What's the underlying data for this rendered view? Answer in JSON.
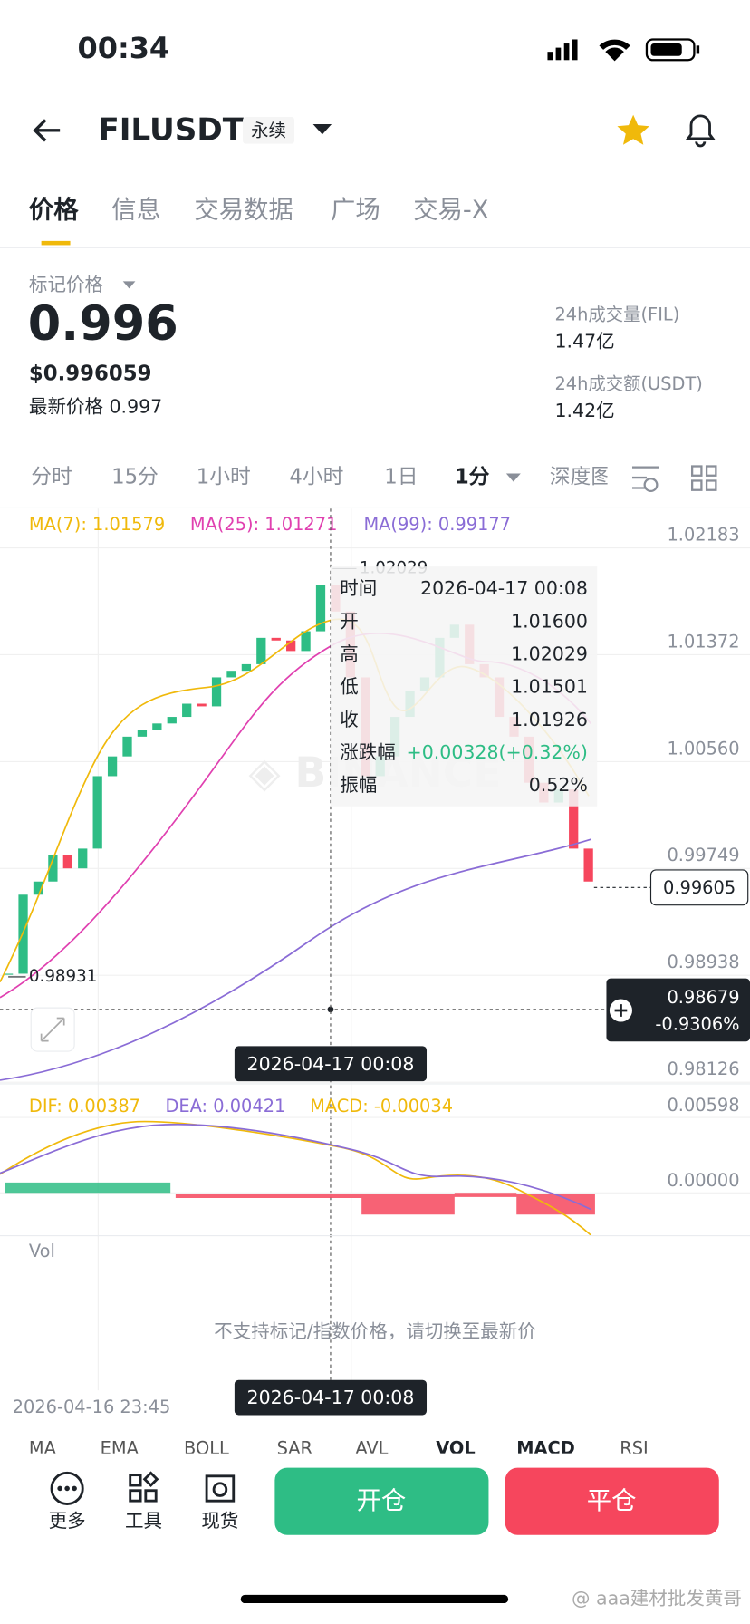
{
  "status_bar": {
    "time": "00:34"
  },
  "header": {
    "symbol": "FILUSDT",
    "contract": "永续"
  },
  "tabs": [
    "价格",
    "信息",
    "交易数据",
    "广场",
    "交易-X"
  ],
  "ticker": {
    "mark_price_label": "标记价格",
    "mark_price": "0.996",
    "usd_price": "$0.996059",
    "last_price": "最新价格 0.997",
    "volume_label": "24h成交量(FIL)",
    "volume": "1.47亿",
    "turnover_label": "24h成交额(USDT)",
    "turnover": "1.42亿"
  },
  "intervals": [
    "分时",
    "15分",
    "1小时",
    "4小时",
    "1日",
    "1分",
    "深度图"
  ],
  "chart_data": {
    "type": "candlestick",
    "ma_labels": [
      "MA(7): 1.01579",
      "MA(25): 1.01271",
      "MA(99): 0.99177"
    ],
    "ylim": [
      0.98126,
      1.02481
    ],
    "yticks": [
      1.02183,
      1.01372,
      {
        "value": 1.0056,
        "label": "1.00560"
      },
      0.99749,
      0.98938,
      0.98126
    ],
    "close": [
      0.9895,
      0.9955,
      0.9965,
      0.9985,
      0.9975,
      0.999,
      1.0045,
      1.006,
      1.0075,
      1.008,
      1.0085,
      1.009,
      1.01,
      1.0098,
      1.012,
      1.0125,
      1.013,
      1.015,
      1.0148,
      1.014,
      1.0155,
      1.019,
      1.017,
      1.012,
      1.0045,
      1.006,
      1.009,
      1.011,
      1.012,
      1.015,
      1.016,
      1.013,
      1.012,
      1.009,
      1.0075,
      1.004,
      1.0025,
      1.0035,
      0.999,
      0.9965
    ],
    "high_label": "1.02029",
    "low_label": "0.98931",
    "current_price": 0.99605,
    "crosshair": {
      "price": 0.98679,
      "change": "-0.9306%",
      "time": "2026-04-17 00:08"
    },
    "tooltip": [
      [
        "时间",
        "2026-04-17 00:08"
      ],
      [
        "开",
        "1.01600"
      ],
      [
        "高",
        "1.02029"
      ],
      [
        "低",
        "1.01501"
      ],
      [
        "收",
        "1.01926"
      ],
      [
        "涨跌幅",
        "+0.00328(+0.32%)"
      ],
      [
        "振幅",
        "0.52%"
      ]
    ],
    "macd": {
      "labels": [
        "DIF: 0.00387",
        "DEA: 0.00421",
        "MACD: -0.00034"
      ],
      "ylim": [
        -0.00336,
        0.0077
      ],
      "yticks": [
        0.00598,
        {
          "value": 0,
          "label": "0.00000"
        }
      ]
    },
    "vol_label": "Vol",
    "notice": "不支持标记/指数价格，请切换至最新价",
    "x_start_label": "2026-04-16 23:45",
    "indicators": [
      "MA",
      "EMA",
      "BOLL",
      "SAR",
      "AVL",
      "VOL",
      "MACD",
      "RSI"
    ]
  },
  "bottom_bar": {
    "more": "更多",
    "tools": "工具",
    "spot": "现货",
    "open": "开仓",
    "close": "平仓"
  },
  "watermark": "@ aaa建材批发黄哥"
}
